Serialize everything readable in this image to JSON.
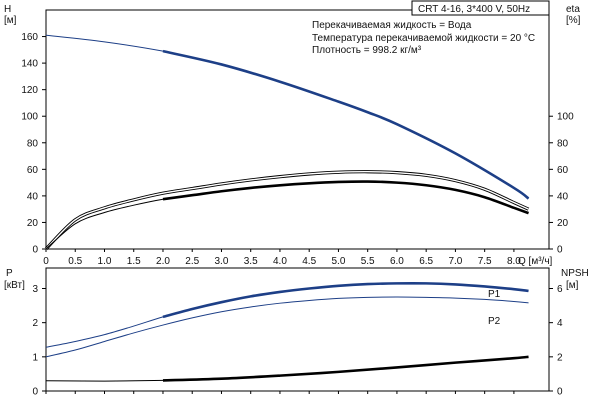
{
  "title": "CRT 4-16, 3*400 V, 50Hz",
  "info_lines": [
    "Перекачиваемая жидкость = Вода",
    "Температура перекачиваемой жидкости = 20 °C",
    "Плотность = 998.2 кг/м³"
  ],
  "colors": {
    "accent": "#1d3f87",
    "line": "#000000",
    "frame": "#000000"
  },
  "chart_data": [
    {
      "type": "line",
      "x_ticks": [
        "0",
        "0.5",
        "1.0",
        "1.5",
        "2.0",
        "2.5",
        "3.0",
        "3.5",
        "4.0",
        "4.5",
        "5.0",
        "5.5",
        "6.0",
        "6.5",
        "7.0",
        "7.5",
        "8.0"
      ],
      "x_unit_label": "Q [м³/ч]",
      "xlim": [
        0,
        8.6
      ],
      "left_axis": {
        "label": "H",
        "unit": "[м]",
        "ticks": [
          "0",
          "20",
          "40",
          "60",
          "80",
          "100",
          "120",
          "140",
          "160"
        ],
        "range": [
          0,
          180
        ]
      },
      "right_axis": {
        "label": "eta",
        "unit": "[%]",
        "ticks": [
          "0",
          "20",
          "40",
          "60",
          "80",
          "100"
        ],
        "range": [
          0,
          180
        ]
      },
      "series": [
        {
          "axis": "left",
          "style": "thin-then-thick",
          "thick_from": 2.0,
          "x": [
            0,
            1,
            2,
            3,
            4,
            5,
            5.5,
            6,
            7,
            8,
            8.25
          ],
          "y": [
            161,
            156,
            149,
            139,
            126,
            111,
            103,
            94,
            72,
            46,
            38
          ]
        },
        {
          "axis": "right",
          "style": "double",
          "x": [
            0,
            0.5,
            1,
            1.5,
            2,
            2.5,
            3,
            3.5,
            4,
            4.5,
            5,
            5.5,
            6,
            6.5,
            7,
            7.5,
            8,
            8.25
          ],
          "y": [
            0,
            22,
            31,
            37,
            42,
            45.5,
            49,
            52,
            54.5,
            56.5,
            57.8,
            58.2,
            57.5,
            55.5,
            51.5,
            45,
            35,
            30
          ]
        },
        {
          "axis": "right",
          "style": "thin-then-thick",
          "thick_from": 2.0,
          "x": [
            0,
            0.5,
            1,
            1.5,
            2,
            2.5,
            3,
            3.5,
            4,
            4.5,
            5,
            5.5,
            6,
            6.5,
            7,
            7.5,
            8,
            8.25
          ],
          "y": [
            0,
            19,
            27.5,
            33,
            37.5,
            40.5,
            43.5,
            46,
            48,
            49.5,
            50.5,
            50.8,
            50,
            48,
            44.5,
            39,
            31,
            27
          ]
        }
      ]
    },
    {
      "type": "line",
      "xlim": [
        0,
        8.6
      ],
      "left_axis": {
        "label": "P",
        "unit": "[кВт]",
        "ticks": [
          "0",
          "1",
          "2",
          "3"
        ],
        "range": [
          0,
          3.6
        ]
      },
      "right_axis": {
        "label": "NPSH",
        "unit": "[м]",
        "ticks": [
          "0",
          "2",
          "4",
          "6"
        ],
        "range": [
          0,
          7.2
        ]
      },
      "series": [
        {
          "name": "P1",
          "axis": "left",
          "style": "thin-then-thick",
          "thick_from": 2.0,
          "color": "#1d3f87",
          "x": [
            0,
            0.5,
            1,
            1.5,
            2,
            2.5,
            3,
            3.5,
            4,
            4.5,
            5,
            5.5,
            6,
            6.5,
            7,
            7.5,
            8,
            8.25
          ],
          "y": [
            1.28,
            1.45,
            1.65,
            1.9,
            2.17,
            2.4,
            2.6,
            2.77,
            2.9,
            3.0,
            3.08,
            3.13,
            3.15,
            3.15,
            3.12,
            3.06,
            2.98,
            2.93
          ]
        },
        {
          "name": "P2",
          "axis": "left",
          "style": "thin",
          "color": "#1d3f87",
          "x": [
            0,
            0.5,
            1,
            1.5,
            2,
            2.5,
            3,
            3.5,
            4,
            4.5,
            5,
            5.5,
            6,
            6.5,
            7,
            7.5,
            8,
            8.25
          ],
          "y": [
            1.0,
            1.2,
            1.45,
            1.7,
            1.93,
            2.14,
            2.32,
            2.46,
            2.57,
            2.65,
            2.71,
            2.74,
            2.75,
            2.74,
            2.72,
            2.68,
            2.62,
            2.58
          ]
        },
        {
          "axis": "right",
          "style": "thin-then-thick",
          "thick_from": 2.0,
          "x": [
            0,
            1,
            2,
            3,
            4,
            5,
            6,
            7,
            8,
            8.25
          ],
          "y": [
            0.6,
            0.58,
            0.62,
            0.72,
            0.9,
            1.12,
            1.38,
            1.66,
            1.92,
            2.0
          ]
        }
      ]
    }
  ]
}
